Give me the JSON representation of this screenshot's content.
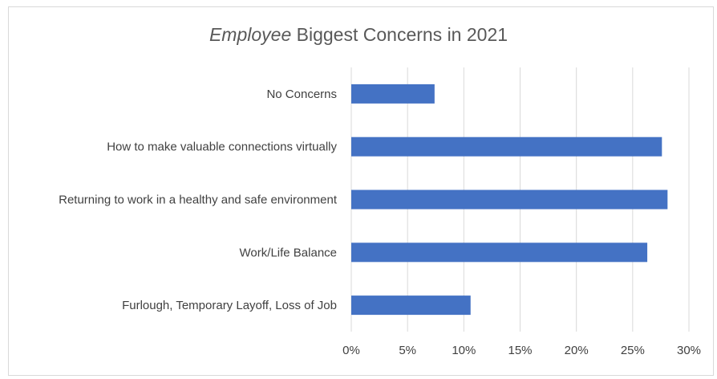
{
  "chart_data": {
    "type": "bar",
    "orientation": "horizontal",
    "title": {
      "italic_part": "Employee",
      "rest": " Biggest Concerns in 2021"
    },
    "categories": [
      "No Concerns",
      "How to make valuable connections virtually",
      "Returning to work in a healthy and safe environment",
      "Work/Life Balance",
      "Furlough, Temporary Layoff, Loss of Job"
    ],
    "values": [
      7.4,
      27.6,
      28.1,
      26.3,
      10.6
    ],
    "xlim": [
      0,
      30
    ],
    "xticks": [
      "0%",
      "5%",
      "10%",
      "15%",
      "20%",
      "25%",
      "30%"
    ],
    "grid": true,
    "legend": "none",
    "bar_color": "#4472c4",
    "grid_color": "#d9d9d9"
  }
}
